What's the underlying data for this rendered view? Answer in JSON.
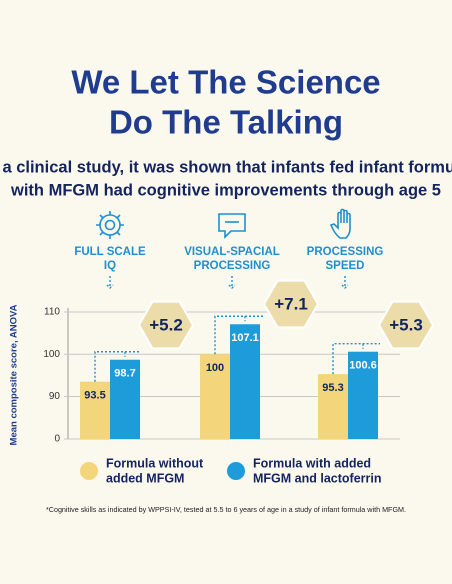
{
  "chart_data": {
    "type": "bar",
    "title": [
      "We Let The Science",
      "Do The Talking"
    ],
    "subtitle": [
      "In a clinical study, it was shown that infants fed infant formula",
      "with MFGM had cognitive improvements through age 5"
    ],
    "categories": [
      [
        "FULL SCALE",
        "IQ"
      ],
      [
        "VISUAL-SPACIAL",
        "PROCESSING"
      ],
      [
        "PROCESSING",
        "SPEED"
      ]
    ],
    "series": [
      {
        "name": [
          "Formula without",
          "added MFGM"
        ],
        "color": "#f3d57c",
        "values": [
          93.5,
          100,
          95.3
        ]
      },
      {
        "name": [
          "Formula with added",
          "MFGM and lactoferrin"
        ],
        "color": "#1e9bd9",
        "values": [
          98.7,
          107.1,
          100.6
        ]
      }
    ],
    "annotations": [
      "+5.2",
      "+7.1",
      "+5.3"
    ],
    "y_label": "Mean composite score, ANOVA",
    "ylim": [
      0,
      110
    ],
    "yticks": [
      0,
      90,
      100,
      110
    ],
    "y_break": [
      0,
      90
    ],
    "footnote": "*Cognitive skills as indicated by WPPSI-IV, tested at 5.5 to 6 years of age in a study of infant formula with MFGM."
  }
}
